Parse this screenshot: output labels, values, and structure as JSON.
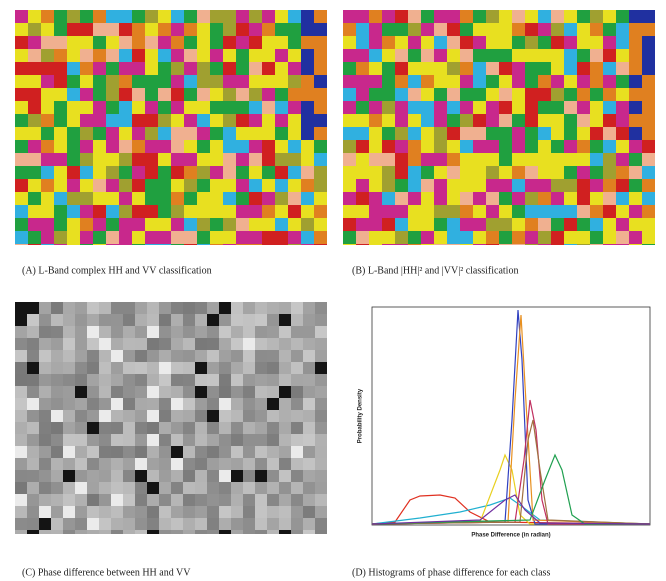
{
  "panels": [
    {
      "caption": "(A) L-Band complex HH and VV classification"
    },
    {
      "caption": "(B) L-Band |HH|² and |VV|² classification"
    },
    {
      "caption": "(C) Phase difference between HH and VV"
    },
    {
      "caption": "(D) Histograms of phase difference for each class",
      "y_label": "Probability Density",
      "x_label": "Phase Difference (in radian)"
    }
  ]
}
